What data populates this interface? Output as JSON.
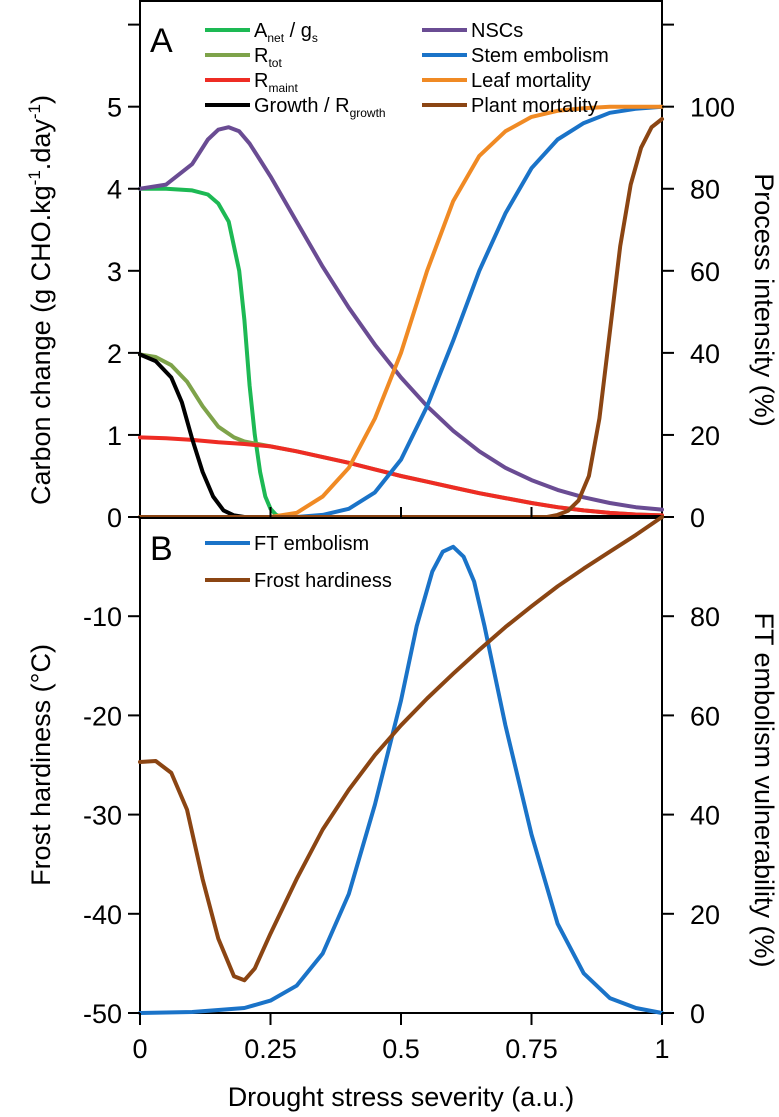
{
  "chart_data": [
    {
      "panel": "A",
      "type": "line",
      "xlabel": "",
      "ylabel": "Carbon change (g CHO.kg",
      "ylabel_sup1": "-1",
      "ylabel_mid": ".day",
      "ylabel_sup2": "-1",
      "ylabel_end": ")",
      "y2label": "Process intensity (%)",
      "xlim": [
        0,
        1
      ],
      "ylim": [
        0,
        6.3
      ],
      "y2lim": [
        0,
        126
      ],
      "xticks": [
        "0",
        "0.25",
        "0.5",
        "0.75",
        "1"
      ],
      "yticks": [
        "0",
        "1",
        "2",
        "3",
        "4",
        "5"
      ],
      "y2ticks": [
        "0",
        "20",
        "40",
        "60",
        "80",
        "100"
      ],
      "grid": false,
      "legend_position": "top",
      "series": [
        {
          "key": "anet",
          "legend_main": "A",
          "legend_sub": "net",
          "legend_rest": " / g",
          "legend_sub2": "s",
          "axis": "left",
          "color": "#1db954",
          "x": [
            0,
            0.05,
            0.1,
            0.13,
            0.15,
            0.17,
            0.19,
            0.2,
            0.21,
            0.22,
            0.23,
            0.24,
            0.25,
            0.26,
            0.27
          ],
          "y": [
            4.0,
            4.0,
            3.98,
            3.93,
            3.82,
            3.6,
            3.0,
            2.4,
            1.6,
            1.0,
            0.55,
            0.25,
            0.1,
            0.03,
            0
          ]
        },
        {
          "key": "rtot",
          "legend_main": "R",
          "legend_sub": "tot",
          "axis": "left",
          "color": "#7ea34a",
          "x": [
            0,
            0.03,
            0.06,
            0.09,
            0.12,
            0.15,
            0.18,
            0.2,
            0.25,
            0.3,
            0.35,
            0.4,
            0.45,
            0.5,
            0.55,
            0.6,
            0.65,
            0.7,
            0.75,
            0.8,
            0.85,
            0.9,
            0.95,
            1
          ],
          "y": [
            1.98,
            1.95,
            1.85,
            1.65,
            1.35,
            1.1,
            0.97,
            0.92,
            0.86,
            0.8,
            0.73,
            0.66,
            0.58,
            0.5,
            0.43,
            0.36,
            0.29,
            0.23,
            0.17,
            0.12,
            0.08,
            0.05,
            0.03,
            0.02
          ]
        },
        {
          "key": "rmaint",
          "legend_main": "R",
          "legend_sub": "maint",
          "axis": "left",
          "color": "#ee2c24",
          "x": [
            0,
            0.05,
            0.1,
            0.15,
            0.2,
            0.25,
            0.3,
            0.35,
            0.4,
            0.45,
            0.5,
            0.55,
            0.6,
            0.65,
            0.7,
            0.75,
            0.8,
            0.85,
            0.9,
            0.95,
            1
          ],
          "y": [
            0.97,
            0.96,
            0.94,
            0.91,
            0.89,
            0.86,
            0.8,
            0.73,
            0.66,
            0.58,
            0.5,
            0.43,
            0.36,
            0.29,
            0.23,
            0.17,
            0.12,
            0.08,
            0.05,
            0.03,
            0.02
          ]
        },
        {
          "key": "growth",
          "legend_main": "Growth / R",
          "legend_sub": "growth",
          "axis": "left",
          "color": "#000000",
          "x": [
            0,
            0.03,
            0.06,
            0.08,
            0.1,
            0.12,
            0.14,
            0.16,
            0.18,
            0.2,
            0.22,
            0.25,
            0.3,
            0.5,
            1
          ],
          "y": [
            1.98,
            1.9,
            1.7,
            1.4,
            0.95,
            0.55,
            0.25,
            0.08,
            0.02,
            0,
            0,
            0,
            0,
            0,
            0
          ]
        },
        {
          "key": "nsc",
          "legend_main": "NSCs",
          "axis": "left",
          "color": "#6a4c93",
          "x": [
            0,
            0.05,
            0.1,
            0.13,
            0.15,
            0.17,
            0.19,
            0.21,
            0.23,
            0.25,
            0.3,
            0.35,
            0.4,
            0.45,
            0.5,
            0.55,
            0.6,
            0.65,
            0.7,
            0.75,
            0.8,
            0.85,
            0.9,
            0.95,
            1
          ],
          "y": [
            4.0,
            4.05,
            4.3,
            4.6,
            4.72,
            4.75,
            4.7,
            4.55,
            4.35,
            4.15,
            3.6,
            3.05,
            2.55,
            2.1,
            1.7,
            1.35,
            1.05,
            0.8,
            0.6,
            0.45,
            0.33,
            0.24,
            0.17,
            0.12,
            0.09
          ]
        },
        {
          "key": "stem",
          "legend_main": "Stem embolism",
          "axis": "right",
          "color": "#1a73c8",
          "x": [
            0,
            0.3,
            0.35,
            0.4,
            0.45,
            0.5,
            0.55,
            0.6,
            0.65,
            0.7,
            0.75,
            0.8,
            0.85,
            0.9,
            0.95,
            1
          ],
          "y": [
            0,
            0,
            0.5,
            2,
            6,
            14,
            27,
            43,
            60,
            74,
            85,
            92,
            96,
            98.5,
            99.5,
            100
          ]
        },
        {
          "key": "leaf",
          "legend_main": "Leaf mortality",
          "axis": "right",
          "color": "#f08a24",
          "x": [
            0,
            0.25,
            0.3,
            0.35,
            0.4,
            0.45,
            0.5,
            0.55,
            0.6,
            0.65,
            0.7,
            0.75,
            0.8,
            0.85,
            0.9,
            1
          ],
          "y": [
            0,
            0,
            1,
            5,
            12,
            24,
            40,
            60,
            77,
            88,
            94,
            97.5,
            99,
            99.6,
            100,
            100
          ]
        },
        {
          "key": "plant",
          "legend_main": "Plant mortality",
          "axis": "right",
          "color": "#8b4513",
          "x": [
            0,
            0.75,
            0.78,
            0.8,
            0.82,
            0.84,
            0.86,
            0.88,
            0.9,
            0.92,
            0.94,
            0.96,
            0.98,
            1
          ],
          "y": [
            0,
            0,
            0,
            0.5,
            1.5,
            4,
            10,
            24,
            45,
            66,
            81,
            90,
            95,
            97
          ]
        }
      ]
    },
    {
      "panel": "B",
      "type": "line",
      "xlabel": "Drought stress severity (a.u.)",
      "ylabel": "Frost hardiness (°C)",
      "y2label": "FT embolism vulnerability (%)",
      "xlim": [
        0,
        1
      ],
      "ylim": [
        -50,
        0
      ],
      "y2lim": [
        0,
        100
      ],
      "xticks": [
        "0",
        "0.25",
        "0.5",
        "0.75",
        "1"
      ],
      "yticks": [
        "-50",
        "-40",
        "-30",
        "-20",
        "-10"
      ],
      "y2ticks": [
        "0",
        "20",
        "40",
        "60",
        "80"
      ],
      "grid": false,
      "legend_position": "top-left",
      "series": [
        {
          "key": "ft",
          "legend_main": "FT embolism",
          "axis": "right",
          "color": "#1a73c8",
          "x": [
            0,
            0.1,
            0.2,
            0.25,
            0.3,
            0.35,
            0.4,
            0.45,
            0.5,
            0.53,
            0.56,
            0.58,
            0.6,
            0.62,
            0.64,
            0.66,
            0.7,
            0.75,
            0.8,
            0.85,
            0.9,
            0.95,
            1
          ],
          "y": [
            0,
            0.2,
            1,
            2.5,
            5.5,
            12,
            24,
            42,
            63,
            78,
            89,
            93,
            94,
            92,
            87,
            78,
            58,
            36,
            18,
            8,
            3,
            1,
            0
          ]
        },
        {
          "key": "frost",
          "legend_main": "Frost hardiness",
          "axis": "left",
          "color": "#8b4513",
          "x": [
            0,
            0.03,
            0.06,
            0.09,
            0.12,
            0.15,
            0.18,
            0.2,
            0.22,
            0.25,
            0.3,
            0.35,
            0.4,
            0.45,
            0.5,
            0.55,
            0.6,
            0.65,
            0.7,
            0.75,
            0.8,
            0.85,
            0.9,
            0.95,
            1
          ],
          "y": [
            -24.7,
            -24.6,
            -25.8,
            -29.5,
            -36.5,
            -42.5,
            -46.3,
            -46.7,
            -45.5,
            -42,
            -36.5,
            -31.5,
            -27.5,
            -24,
            -21,
            -18.3,
            -15.8,
            -13.4,
            -11.1,
            -9,
            -7,
            -5.2,
            -3.5,
            -1.8,
            0
          ]
        }
      ]
    }
  ]
}
